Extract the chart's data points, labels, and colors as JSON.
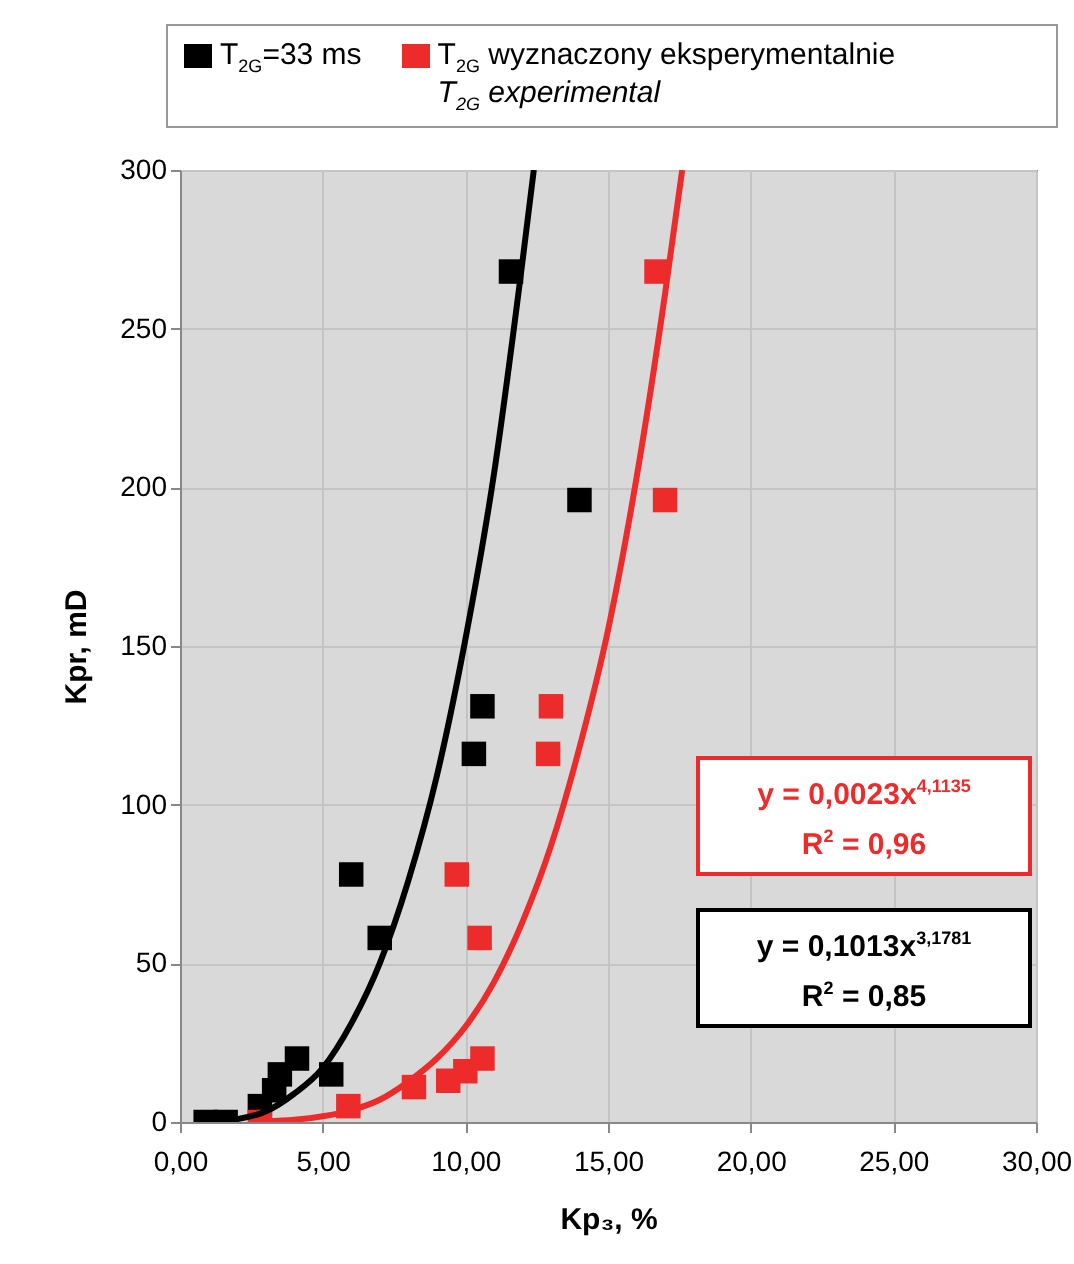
{
  "chart_data": {
    "type": "scatter",
    "xlabel": "Kp₃, %",
    "ylabel": "Kpr, mD",
    "xlim": [
      0,
      30
    ],
    "xticks": [
      {
        "value": 0,
        "label": "0,00"
      },
      {
        "value": 5,
        "label": "5,00"
      },
      {
        "value": 10,
        "label": "10,00"
      },
      {
        "value": 15,
        "label": "15,00"
      },
      {
        "value": 20,
        "label": "20,00"
      },
      {
        "value": 25,
        "label": "25,00"
      },
      {
        "value": 30,
        "label": "30,00"
      }
    ],
    "ylim": [
      0,
      300
    ],
    "yticks": [
      0,
      50,
      100,
      150,
      200,
      250,
      300
    ],
    "grid": true,
    "legend": "top",
    "marker": "square",
    "series": [
      {
        "name": "T$_{2G}$=33 ms",
        "color": "#000000",
        "x": [
          0.9,
          1.6,
          2.8,
          3.3,
          3.5,
          4.1,
          5.3,
          6.0,
          7.0,
          10.3,
          10.6,
          11.6,
          14.0
        ],
        "values": [
          0,
          0,
          5,
          10,
          15,
          20,
          15,
          78,
          58,
          116,
          131,
          268,
          196
        ]
      },
      {
        "name": "T$_{2G}$ wyznaczony eksperymentalnie\nT$_{2G}$ experimental",
        "color": "#ee2b2b",
        "x": [
          2.8,
          5.9,
          8.2,
          9.4,
          10.0,
          10.6,
          9.7,
          10.5,
          12.9,
          13.0,
          16.7,
          17.0
        ],
        "values": [
          0,
          5,
          11,
          13,
          16,
          20,
          78,
          58,
          116,
          131,
          268,
          196
        ]
      },
      {
        "type": "line",
        "marker": "none",
        "color": "#ee2b2b",
        "x": [
          3,
          4,
          5,
          6,
          7,
          8,
          9,
          10,
          11,
          12,
          13,
          14,
          15,
          16,
          17,
          17.6
        ],
        "values": [
          0.2,
          0.7,
          1.8,
          3.7,
          7,
          12.7,
          20,
          30,
          44,
          63,
          87,
          118,
          155,
          203,
          261,
          300
        ]
      },
      {
        "type": "line",
        "marker": "none",
        "color": "#000000",
        "x": [
          1.2,
          2,
          3,
          4,
          5,
          6,
          7,
          8,
          9,
          10,
          11,
          12,
          12.4
        ],
        "values": [
          0.2,
          0.9,
          3.3,
          8.9,
          17,
          31,
          50,
          76,
          109,
          152,
          204,
          271,
          300
        ]
      }
    ],
    "annotations": [
      "y = 0,0023x$^{4,1135}$",
      "R$^{2}$ = 0,96",
      "y = 0,1013x$^{3,1781}$",
      "R$^{2}$ = 0,85"
    ]
  }
}
